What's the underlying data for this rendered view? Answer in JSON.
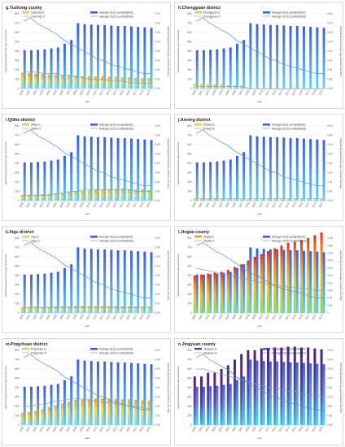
{
  "common": {
    "years": [
      "2000",
      "2001",
      "2002",
      "2003",
      "2004",
      "2005",
      "2006",
      "2007",
      "2008",
      "2009",
      "2010",
      "2011",
      "2012",
      "2013",
      "2014",
      "2015",
      "2016",
      "2017",
      "2018",
      "2019"
    ],
    "ylabel_left": "Agricultural greenhouse gas emission(t)",
    "ylabel_right": "Agricultural greenhouse gas emission intensity",
    "xlabel": "year",
    "left_ticks": [
      "0",
      "100",
      "200",
      "300",
      "400",
      "500",
      "600",
      "700",
      "800"
    ],
    "right_ticks_default": [
      "0.00",
      "0.01",
      "0.01",
      "0.02",
      "0.02",
      "0.03",
      "0.03",
      "0.04",
      "0.04"
    ],
    "right_ticks_jingtai": [
      "0",
      "0.01",
      "0.01",
      "0.02",
      "0.02",
      "0.03",
      "0.03",
      "0.04",
      "0.04",
      "0.05",
      "0.05"
    ],
    "avg_g_label": "Average-G(15 county/district)",
    "avg_ci_label": "Average-CI(15 county/district)",
    "colors": {
      "avg_bar": "#3d5ddb",
      "avg_line": "#5b8fc7",
      "county_line": "#999999"
    }
  },
  "chart_data": [
    {
      "id": "g",
      "type": "bar",
      "title": "g.Yuzhong county",
      "legend_g": "Yuzhong-G",
      "legend_ci": "Yuzhong-CI",
      "ylim": [
        0,
        800
      ],
      "ylim_right": [
        0,
        0.04
      ],
      "avg_g": [
        410,
        410,
        415,
        420,
        430,
        440,
        480,
        520,
        700,
        690,
        685,
        680,
        680,
        675,
        670,
        670,
        665,
        660,
        655,
        650
      ],
      "county_g": [
        170,
        165,
        160,
        155,
        150,
        150,
        145,
        140,
        140,
        135,
        135,
        130,
        130,
        125,
        125,
        120,
        120,
        115,
        110,
        110
      ],
      "avg_ci": [
        0.036,
        0.038,
        0.035,
        0.033,
        0.031,
        0.029,
        0.026,
        0.024,
        0.022,
        0.02,
        0.018,
        0.016,
        0.015,
        0.013,
        0.012,
        0.011,
        0.01,
        0.009,
        0.008,
        0.008
      ],
      "county_ci": [
        0.009,
        0.009,
        0.009,
        0.008,
        0.008,
        0.008,
        0.007,
        0.007,
        0.006,
        0.006,
        0.005,
        0.005,
        0.005,
        0.004,
        0.004,
        0.004,
        0.003,
        0.003,
        0.003,
        0.003
      ]
    },
    {
      "id": "h",
      "type": "bar",
      "title": "h.Chengguan district",
      "legend_g": "Chengguan-G",
      "legend_ci": "Chengguan-CI",
      "ylim": [
        0,
        800
      ],
      "ylim_right": [
        0,
        0.04
      ],
      "avg_g": [
        410,
        410,
        415,
        420,
        430,
        440,
        480,
        520,
        700,
        690,
        685,
        680,
        680,
        675,
        670,
        670,
        665,
        660,
        655,
        650
      ],
      "county_g": [
        50,
        48,
        45,
        42,
        40,
        38,
        35,
        32,
        0,
        0,
        0,
        0,
        0,
        0,
        0,
        0,
        0,
        0,
        0,
        0
      ],
      "avg_ci": [
        0.036,
        0.038,
        0.035,
        0.033,
        0.031,
        0.029,
        0.026,
        0.024,
        0.022,
        0.02,
        0.018,
        0.016,
        0.015,
        0.013,
        0.012,
        0.011,
        0.01,
        0.009,
        0.008,
        0.008
      ],
      "county_ci": [
        0.001,
        0.001,
        0.001,
        0.001,
        0.001,
        0.001,
        0.001,
        0.001,
        0.0,
        0.0,
        0.0,
        0.0,
        0.0,
        0.0,
        0.0,
        0.0,
        0.0,
        0.0,
        0.0,
        0.0
      ]
    },
    {
      "id": "i",
      "type": "bar",
      "title": "i.Qilihe district",
      "legend_g": "Qilihe-G",
      "legend_ci": "Qilihe-CI",
      "ylim": [
        0,
        800
      ],
      "ylim_right": [
        0,
        0.04
      ],
      "avg_g": [
        410,
        410,
        415,
        420,
        430,
        440,
        480,
        520,
        700,
        690,
        685,
        680,
        680,
        675,
        670,
        670,
        665,
        660,
        655,
        650
      ],
      "county_g": [
        60,
        62,
        65,
        70,
        75,
        80,
        85,
        90,
        100,
        105,
        110,
        115,
        120,
        125,
        125,
        130,
        125,
        120,
        120,
        115
      ],
      "avg_ci": [
        0.036,
        0.038,
        0.035,
        0.033,
        0.031,
        0.029,
        0.026,
        0.024,
        0.022,
        0.02,
        0.018,
        0.016,
        0.015,
        0.013,
        0.012,
        0.011,
        0.01,
        0.009,
        0.008,
        0.008
      ],
      "county_ci": [
        0.003,
        0.003,
        0.003,
        0.003,
        0.003,
        0.004,
        0.004,
        0.005,
        0.005,
        0.006,
        0.006,
        0.006,
        0.006,
        0.006,
        0.006,
        0.006,
        0.006,
        0.005,
        0.005,
        0.005
      ]
    },
    {
      "id": "j",
      "type": "bar",
      "title": "j.Anning district",
      "legend_g": "Anning-G",
      "legend_ci": "Anning-CI",
      "ylim": [
        0,
        800
      ],
      "ylim_right": [
        0,
        0.04
      ],
      "avg_g": [
        410,
        410,
        415,
        420,
        430,
        440,
        480,
        520,
        700,
        690,
        685,
        680,
        680,
        675,
        670,
        670,
        665,
        660,
        655,
        650
      ],
      "county_g": [
        25,
        25,
        24,
        24,
        23,
        23,
        22,
        22,
        21,
        21,
        20,
        20,
        20,
        19,
        19,
        19,
        18,
        18,
        18,
        17
      ],
      "avg_ci": [
        0.036,
        0.038,
        0.035,
        0.033,
        0.031,
        0.029,
        0.026,
        0.024,
        0.022,
        0.02,
        0.018,
        0.016,
        0.015,
        0.013,
        0.012,
        0.011,
        0.01,
        0.009,
        0.008,
        0.008
      ],
      "county_ci": [
        0.001,
        0.001,
        0.001,
        0.001,
        0.001,
        0.001,
        0.001,
        0.001,
        0.001,
        0.001,
        0.001,
        0.001,
        0.001,
        0.001,
        0.001,
        0.001,
        0.001,
        0.001,
        0.001,
        0.001
      ]
    },
    {
      "id": "k",
      "type": "bar",
      "title": "k.Xigu district",
      "legend_g": "Xigu-G",
      "legend_ci": "Xigu-CI",
      "ylim": [
        0,
        800
      ],
      "ylim_right": [
        0,
        0.04
      ],
      "avg_g": [
        410,
        410,
        415,
        420,
        430,
        440,
        480,
        520,
        700,
        690,
        685,
        680,
        680,
        675,
        670,
        670,
        665,
        660,
        655,
        650
      ],
      "county_g": [
        60,
        62,
        64,
        65,
        66,
        68,
        70,
        72,
        75,
        75,
        74,
        73,
        72,
        71,
        70,
        70,
        69,
        68,
        67,
        66
      ],
      "avg_ci": [
        0.036,
        0.038,
        0.035,
        0.033,
        0.031,
        0.029,
        0.026,
        0.024,
        0.022,
        0.02,
        0.018,
        0.016,
        0.015,
        0.013,
        0.012,
        0.011,
        0.01,
        0.009,
        0.008,
        0.008
      ],
      "county_ci": [
        0.003,
        0.003,
        0.003,
        0.003,
        0.003,
        0.003,
        0.003,
        0.003,
        0.003,
        0.003,
        0.003,
        0.003,
        0.003,
        0.003,
        0.003,
        0.003,
        0.003,
        0.003,
        0.003,
        0.003
      ]
    },
    {
      "id": "l",
      "type": "bar",
      "title": "l.Jingtai county",
      "legend_g": "Jingtai-G",
      "legend_ci": "Jingtai-CI",
      "ylim": [
        0,
        800
      ],
      "ylim_right": [
        0,
        0.05
      ],
      "avg_g": [
        410,
        410,
        415,
        420,
        430,
        440,
        480,
        520,
        700,
        690,
        685,
        680,
        680,
        675,
        670,
        670,
        665,
        660,
        655,
        650
      ],
      "county_g": [
        400,
        410,
        420,
        430,
        440,
        460,
        490,
        520,
        560,
        600,
        630,
        660,
        690,
        720,
        750,
        760,
        780,
        800,
        830,
        860
      ],
      "avg_ci": [
        0.045,
        0.047,
        0.044,
        0.041,
        0.039,
        0.036,
        0.033,
        0.03,
        0.027,
        0.025,
        0.023,
        0.02,
        0.018,
        0.016,
        0.015,
        0.014,
        0.013,
        0.011,
        0.01,
        0.01
      ],
      "county_ci": [
        0.03,
        0.029,
        0.028,
        0.027,
        0.026,
        0.025,
        0.024,
        0.023,
        0.022,
        0.021,
        0.02,
        0.019,
        0.018,
        0.018,
        0.017,
        0.017,
        0.016,
        0.016,
        0.015,
        0.015
      ]
    },
    {
      "id": "m",
      "type": "bar",
      "title": "m.Pingchuan district",
      "legend_g": "Pingchuan-G",
      "legend_ci": "Pingchuan-CI",
      "ylim": [
        0,
        800
      ],
      "ylim_right": [
        0,
        0.04
      ],
      "avg_g": [
        410,
        410,
        415,
        420,
        430,
        440,
        480,
        520,
        700,
        690,
        685,
        680,
        680,
        675,
        670,
        670,
        665,
        660,
        655,
        650
      ],
      "county_g": [
        130,
        140,
        150,
        170,
        190,
        210,
        230,
        250,
        270,
        275,
        280,
        285,
        285,
        280,
        280,
        275,
        275,
        270,
        265,
        260
      ],
      "avg_ci": [
        0.036,
        0.038,
        0.035,
        0.033,
        0.031,
        0.029,
        0.026,
        0.024,
        0.022,
        0.02,
        0.018,
        0.016,
        0.015,
        0.013,
        0.012,
        0.011,
        0.01,
        0.009,
        0.008,
        0.008
      ],
      "county_ci": [
        0.01,
        0.01,
        0.011,
        0.011,
        0.012,
        0.013,
        0.013,
        0.014,
        0.014,
        0.014,
        0.013,
        0.013,
        0.012,
        0.012,
        0.011,
        0.011,
        0.01,
        0.01,
        0.009,
        0.009
      ]
    },
    {
      "id": "n",
      "type": "bar",
      "title": "n.Jingyuan county",
      "legend_g": "Jingyuan-G",
      "legend_ci": "Jingyuan-CI",
      "ylim": [
        0,
        800
      ],
      "ylim_right": [
        0,
        0.04
      ],
      "avg_g": [
        410,
        410,
        415,
        420,
        430,
        440,
        480,
        520,
        700,
        690,
        685,
        680,
        680,
        675,
        670,
        670,
        665,
        660,
        655,
        650
      ],
      "county_g": [
        520,
        520,
        560,
        560,
        600,
        640,
        700,
        760,
        800,
        800,
        820,
        820,
        830,
        830,
        840,
        840,
        830,
        830,
        820,
        810
      ],
      "avg_ci": [
        0.036,
        0.038,
        0.035,
        0.033,
        0.031,
        0.029,
        0.026,
        0.024,
        0.022,
        0.02,
        0.018,
        0.016,
        0.015,
        0.013,
        0.012,
        0.011,
        0.01,
        0.009,
        0.008,
        0.008
      ],
      "county_ci": [
        0.03,
        0.03,
        0.029,
        0.028,
        0.027,
        0.026,
        0.025,
        0.024,
        0.023,
        0.022,
        0.021,
        0.02,
        0.02,
        0.019,
        0.018,
        0.018,
        0.017,
        0.016,
        0.016,
        0.015
      ]
    }
  ]
}
